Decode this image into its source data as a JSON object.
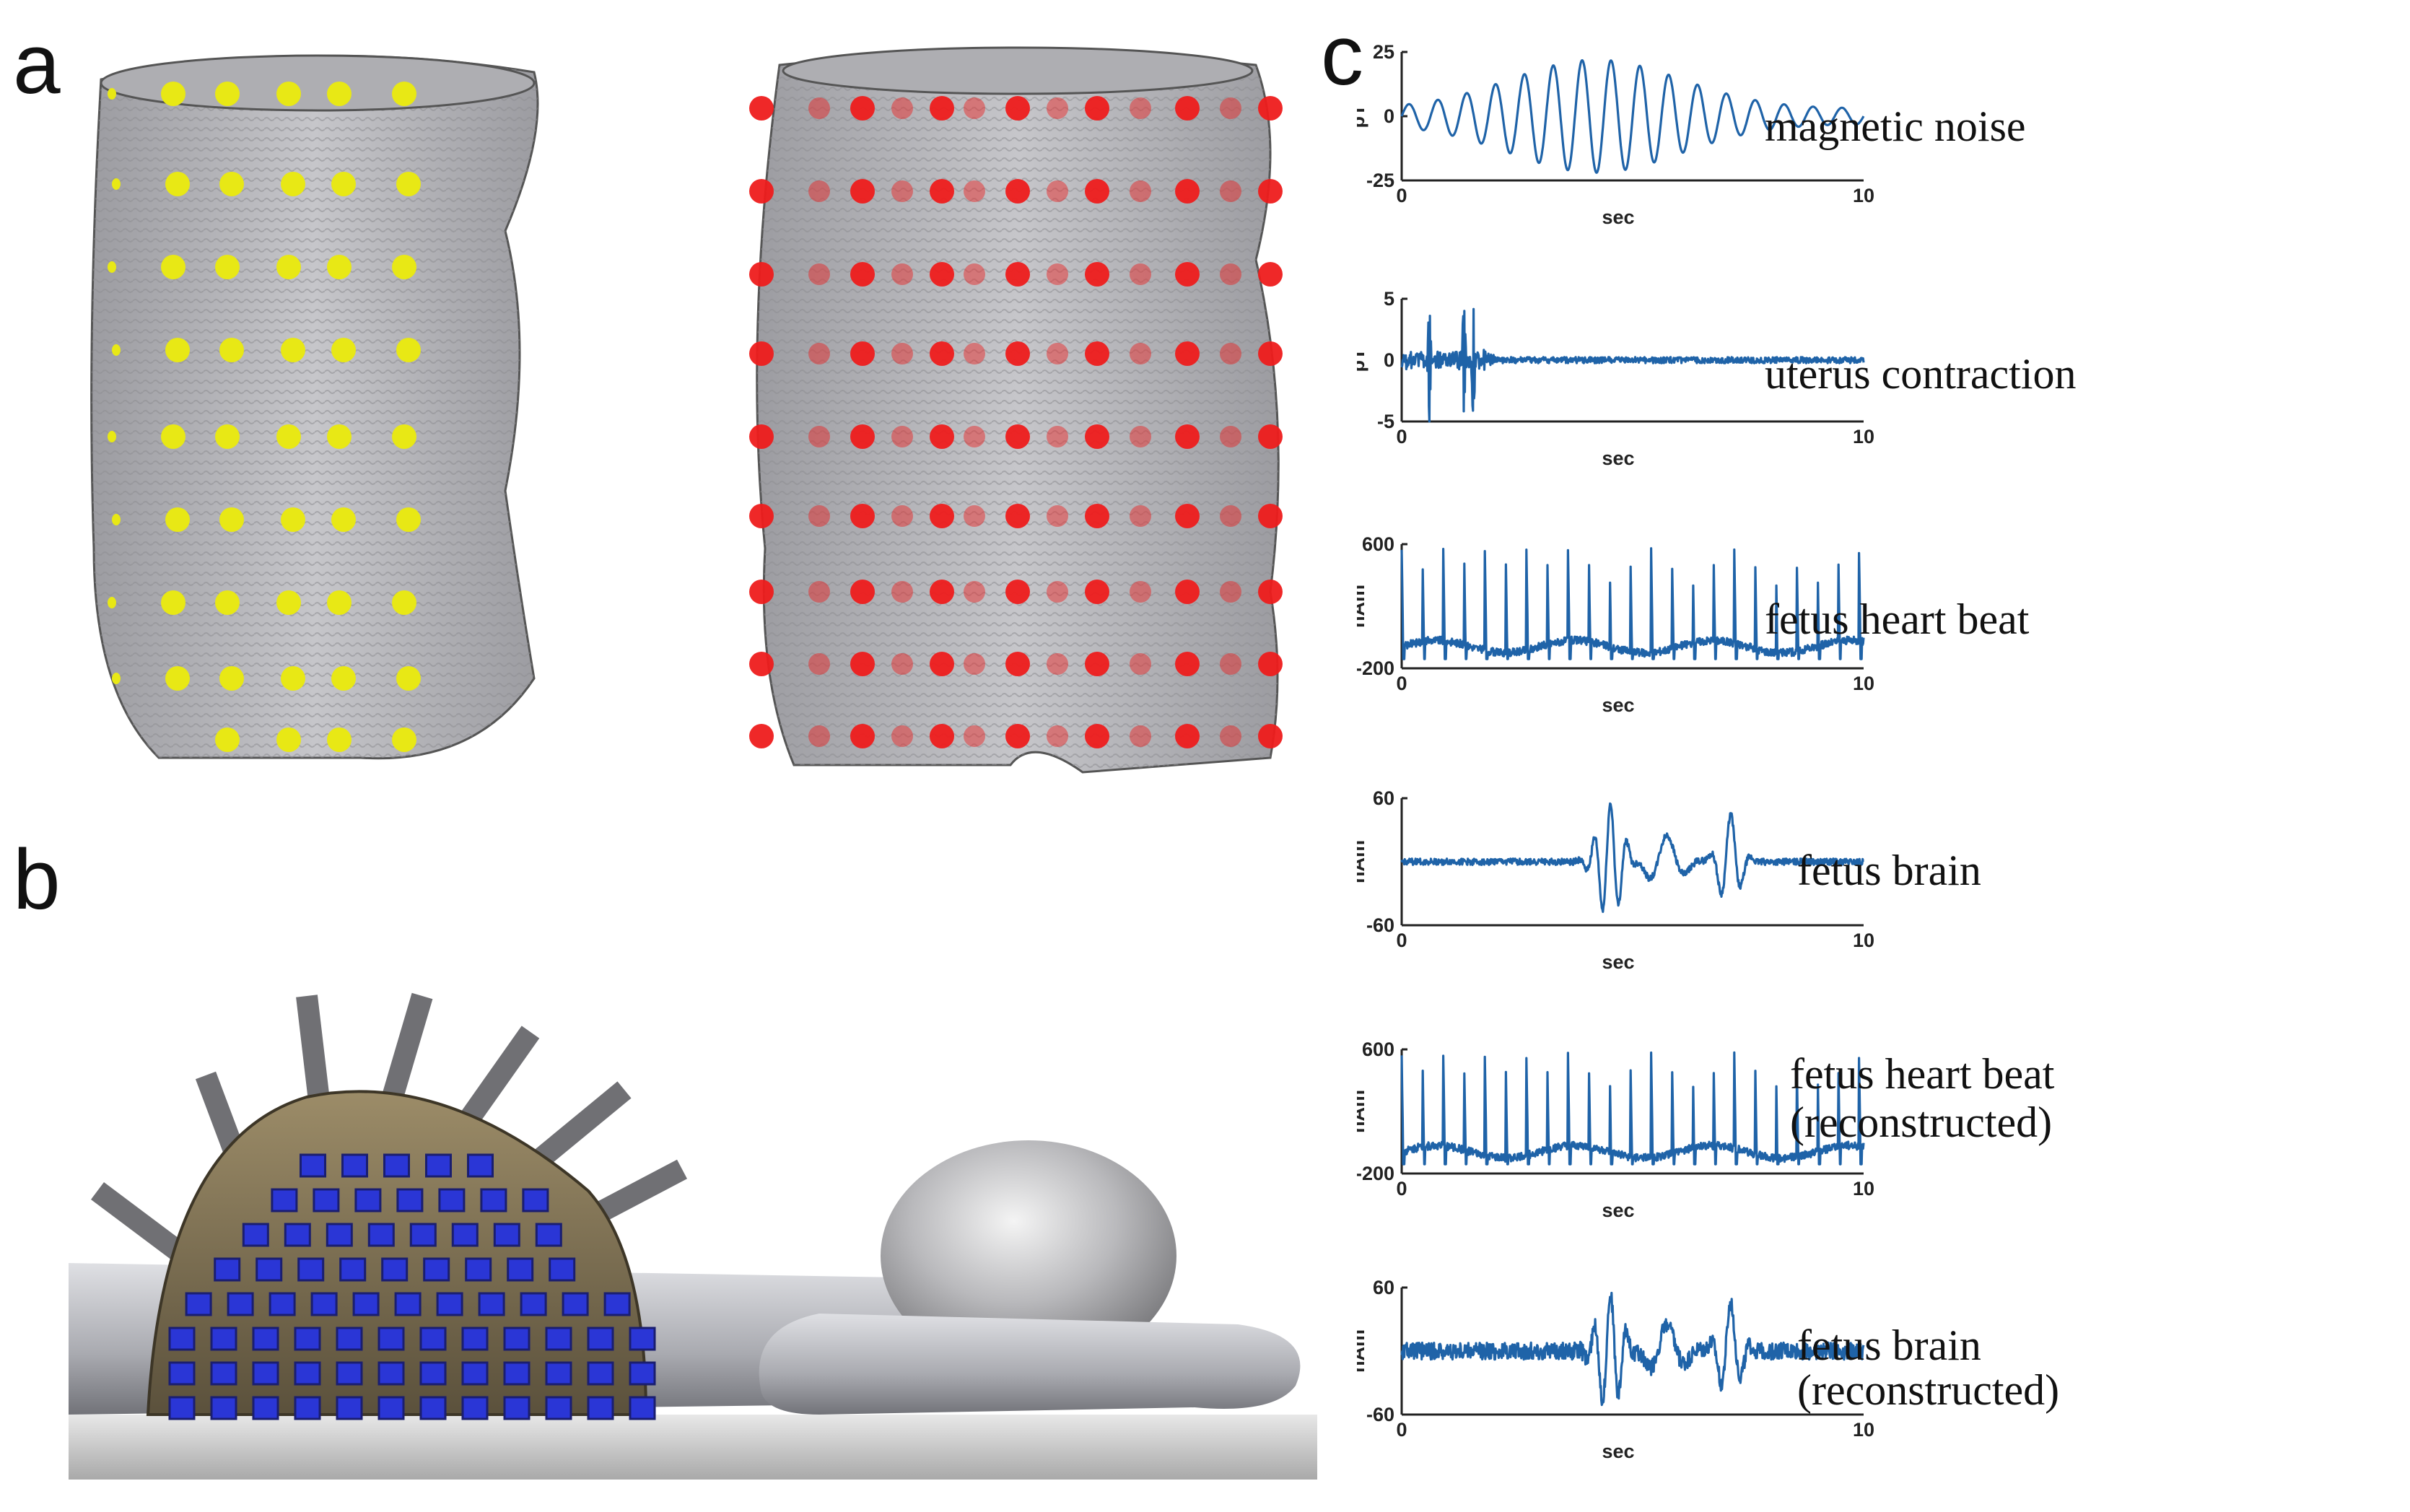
{
  "panels": {
    "a": "a",
    "b": "b",
    "c": "c"
  },
  "colors": {
    "trace": "#1f63a8",
    "sensor_yellow": "#e8e815",
    "sensor_red": "#ee1c1c",
    "sensor_blue": "#2a36d6",
    "torso": "#b7b7bb"
  },
  "chart_data": [
    {
      "type": "line",
      "signal": "magnetic_noise",
      "label": [
        "magnetic noise"
      ],
      "ylabel": "pT",
      "xlabel": "sec",
      "xlim": [
        0,
        10
      ],
      "ylim": [
        -25,
        25
      ],
      "yticks": [
        "25",
        "0",
        "-25"
      ],
      "xticks": [
        "0",
        "10"
      ],
      "description_values": {
        "frequency_hz": 1.6,
        "peak_amplitude_pT": 22,
        "peak_time_sec": 4.2
      }
    },
    {
      "type": "line",
      "signal": "uterus_contraction",
      "label": [
        "uterus contraction"
      ],
      "ylabel": "pT",
      "xlabel": "sec",
      "xlim": [
        0,
        10
      ],
      "ylim": [
        -5,
        5
      ],
      "yticks": [
        "5",
        "0",
        "-5"
      ],
      "xticks": [
        "0",
        "10"
      ],
      "description_values": {
        "spike_times_sec": [
          0.6,
          1.35,
          1.55
        ],
        "spike_amplitude_pT": 5
      }
    },
    {
      "type": "line",
      "signal": "fetus_heart_beat",
      "label": [
        "fetus heart beat"
      ],
      "ylabel": "nAm",
      "xlabel": "sec",
      "xlim": [
        0,
        10
      ],
      "ylim": [
        -200,
        600
      ],
      "yticks": [
        "600",
        "-200"
      ],
      "xticks": [
        "0",
        "10"
      ],
      "description_values": {
        "beat_period_sec": 0.45,
        "peak_nAm": 560,
        "baseline_nAm": -60
      }
    },
    {
      "type": "line",
      "signal": "fetus_brain",
      "label": [
        "fetus brain"
      ],
      "ylabel": "nAm",
      "xlabel": "sec",
      "xlim": [
        0,
        10
      ],
      "ylim": [
        -60,
        60
      ],
      "yticks": [
        "60",
        "-60"
      ],
      "xticks": [
        "0",
        "10"
      ],
      "description_values": {
        "burst_times_sec": [
          4.5,
          5.7,
          7.1
        ],
        "peak_nAm": 50,
        "trough_nAm": -58
      }
    },
    {
      "type": "line",
      "signal": "fetus_heart_beat_reconstructed",
      "label": [
        "fetus heart beat",
        "(reconstructed)"
      ],
      "ylabel": "nAm",
      "xlabel": "sec",
      "xlim": [
        0,
        10
      ],
      "ylim": [
        -200,
        600
      ],
      "yticks": [
        "600",
        "-200"
      ],
      "xticks": [
        "0",
        "10"
      ],
      "description_values": {
        "beat_period_sec": 0.45,
        "peak_nAm": 560,
        "baseline_nAm": -60
      }
    },
    {
      "type": "line",
      "signal": "fetus_brain_reconstructed",
      "label": [
        "fetus brain",
        "(reconstructed)"
      ],
      "ylabel": "nAm",
      "xlabel": "sec",
      "xlim": [
        0,
        10
      ],
      "ylim": [
        -60,
        60
      ],
      "yticks": [
        "60",
        "-60"
      ],
      "xticks": [
        "0",
        "10"
      ],
      "description_values": {
        "burst_times_sec": [
          4.5,
          5.7,
          7.1
        ],
        "peak_nAm": 55,
        "trough_nAm": -58
      }
    }
  ]
}
